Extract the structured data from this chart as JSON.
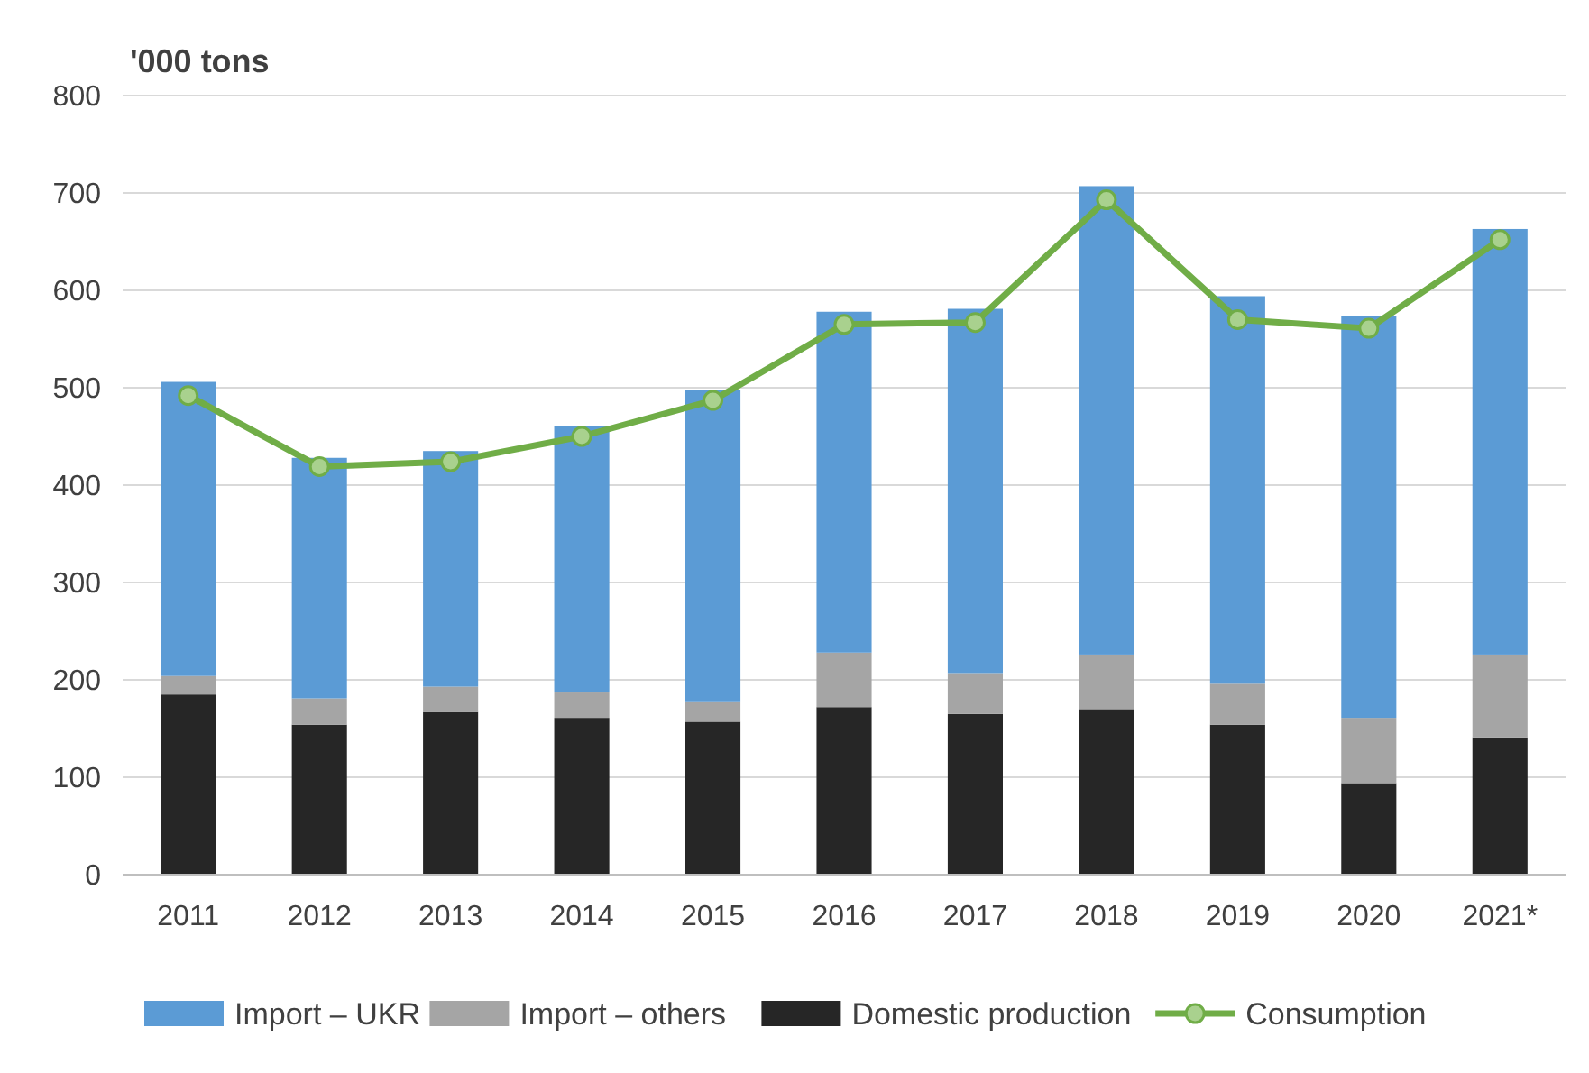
{
  "chart_data": {
    "type": "bar",
    "stacked": true,
    "ylabel": "'000 tons",
    "categories": [
      "2011",
      "2012",
      "2013",
      "2014",
      "2015",
      "2016",
      "2017",
      "2018",
      "2019",
      "2020",
      "2021*"
    ],
    "series": [
      {
        "name": "Domestic production",
        "color": "#262626",
        "values": [
          185,
          154,
          167,
          161,
          157,
          172,
          165,
          170,
          154,
          94,
          141
        ]
      },
      {
        "name": "Import – others",
        "color": "#a5a5a5",
        "values": [
          19,
          27,
          26,
          26,
          21,
          56,
          42,
          56,
          42,
          67,
          85
        ]
      },
      {
        "name": "Import – UKR",
        "color": "#5b9bd5",
        "values": [
          302,
          247,
          242,
          274,
          320,
          350,
          374,
          481,
          398,
          413,
          437
        ]
      },
      {
        "name": "Consumption",
        "type": "line",
        "color": "#70ad47",
        "marker": "circle",
        "values": [
          492,
          419,
          424,
          450,
          487,
          565,
          567,
          693,
          570,
          561,
          652
        ]
      }
    ],
    "ylim": [
      0,
      800
    ],
    "yticks": [
      0,
      100,
      200,
      300,
      400,
      500,
      600,
      700,
      800
    ],
    "grid": "y",
    "legend": "bottom"
  }
}
